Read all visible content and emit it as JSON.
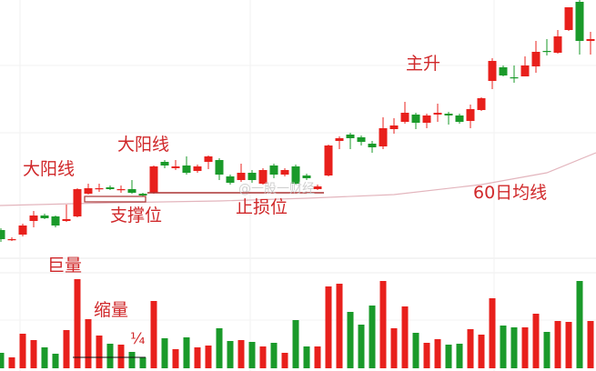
{
  "chart_data": {
    "type": "candlestick",
    "title": "",
    "colors": {
      "up": "#e8201c",
      "down": "#1a9a2a",
      "ma60": "#e3b5bd",
      "annotation": "#d0282a"
    },
    "grid": true,
    "candles": [
      [
        4.7,
        4.9,
        3.4,
        3.7
      ],
      [
        3.7,
        3.9,
        3.5,
        3.7
      ],
      [
        4.2,
        5.4,
        4.0,
        5.2
      ],
      [
        5.7,
        6.8,
        5.0,
        6.3
      ],
      [
        6.3,
        6.5,
        5.9,
        6.0
      ],
      [
        6.2,
        6.3,
        5.0,
        5.2
      ],
      [
        5.7,
        7.5,
        5.6,
        5.9
      ],
      [
        6.2,
        9.3,
        6.1,
        9.2
      ],
      [
        8.7,
        9.8,
        8.6,
        9.3
      ],
      [
        9.3,
        9.8,
        8.9,
        9.3
      ],
      [
        9.4,
        9.6,
        9.1,
        9.2
      ],
      [
        9.2,
        9.6,
        8.8,
        9.2
      ],
      [
        9.2,
        10.2,
        8.7,
        8.8
      ],
      [
        8.7,
        8.8,
        8.4,
        8.5
      ],
      [
        8.8,
        11.8,
        8.7,
        11.7
      ],
      [
        12.2,
        12.4,
        11.5,
        11.8
      ],
      [
        11.5,
        12.4,
        11.3,
        11.7
      ],
      [
        11.8,
        12.8,
        10.8,
        11.0
      ],
      [
        11.2,
        11.9,
        11.0,
        11.7
      ],
      [
        12.2,
        12.9,
        11.4,
        12.8
      ],
      [
        12.4,
        12.6,
        10.2,
        10.8
      ],
      [
        10.6,
        10.8,
        9.7,
        9.9
      ],
      [
        10.2,
        12.0,
        10.0,
        11.0
      ],
      [
        11.0,
        11.3,
        9.9,
        10.2
      ],
      [
        9.8,
        11.5,
        9.7,
        11.3
      ],
      [
        11.8,
        12.0,
        10.4,
        10.8
      ],
      [
        10.8,
        11.5,
        10.6,
        11.3
      ],
      [
        11.7,
        11.9,
        9.7,
        9.8
      ],
      [
        10.7,
        10.9,
        10.2,
        10.4
      ],
      [
        9.2,
        9.7,
        9.1,
        9.5
      ],
      [
        10.7,
        14.1,
        10.6,
        14.0
      ],
      [
        14.5,
        15.0,
        13.6,
        14.8
      ],
      [
        15.2,
        15.4,
        13.6,
        14.8
      ],
      [
        14.9,
        15.1,
        14.0,
        14.4
      ],
      [
        14.2,
        14.5,
        13.2,
        13.8
      ],
      [
        13.9,
        17.1,
        13.6,
        15.9
      ],
      [
        15.8,
        17.0,
        15.3,
        16.2
      ],
      [
        16.6,
        18.8,
        16.4,
        17.6
      ],
      [
        17.4,
        17.6,
        15.8,
        16.5
      ],
      [
        16.5,
        17.5,
        15.9,
        17.3
      ],
      [
        17.4,
        18.6,
        16.6,
        17.6
      ],
      [
        17.5,
        17.7,
        16.3,
        17.3
      ],
      [
        17.3,
        17.5,
        16.4,
        16.6
      ],
      [
        16.7,
        18.5,
        15.9,
        18.0
      ],
      [
        17.9,
        19.3,
        17.8,
        19.2
      ],
      [
        21.1,
        23.6,
        20.2,
        23.3
      ],
      [
        22.6,
        22.8,
        21.6,
        21.7
      ],
      [
        21.5,
        22.8,
        20.9,
        21.4
      ],
      [
        21.6,
        23.8,
        21.6,
        22.8
      ],
      [
        22.7,
        25.5,
        22.0,
        24.3
      ],
      [
        24.4,
        25.7,
        23.9,
        24.3
      ],
      [
        24.2,
        26.7,
        24.1,
        26.0
      ],
      [
        26.7,
        29.2,
        26.6,
        29.2
      ],
      [
        29.8,
        30.0,
        24.0,
        25.5
      ],
      [
        25.5,
        26.5,
        24.0,
        25.7
      ]
    ],
    "volumes": [
      17,
      12,
      38,
      31,
      23,
      16,
      42,
      98,
      54,
      36,
      27,
      26,
      18,
      12,
      74,
      33,
      21,
      34,
      23,
      25,
      44,
      30,
      31,
      29,
      24,
      28,
      17,
      53,
      24,
      24,
      90,
      93,
      62,
      48,
      69,
      96,
      44,
      68,
      39,
      28,
      32,
      26,
      27,
      43,
      37,
      77,
      47,
      45,
      45,
      60,
      40,
      52,
      51,
      96,
      52
    ],
    "ma60": [
      [
        0,
        7.4
      ],
      [
        10,
        7.7
      ],
      [
        20,
        7.9
      ],
      [
        28,
        8.2
      ],
      [
        36,
        8.6
      ],
      [
        44,
        9.7
      ],
      [
        50,
        11.0
      ],
      [
        54,
        13.2
      ]
    ],
    "annotations": {
      "big_yang_1": "大阳线",
      "big_yang_2": "大阳线",
      "support": "支撑位",
      "stop_loss": "止损位",
      "main_rise": "主升",
      "ma60_label": "60日均线",
      "huge_volume": "巨量",
      "shrink_volume": "缩量",
      "quarter": "¼"
    },
    "watermark": "@一股一财经"
  }
}
